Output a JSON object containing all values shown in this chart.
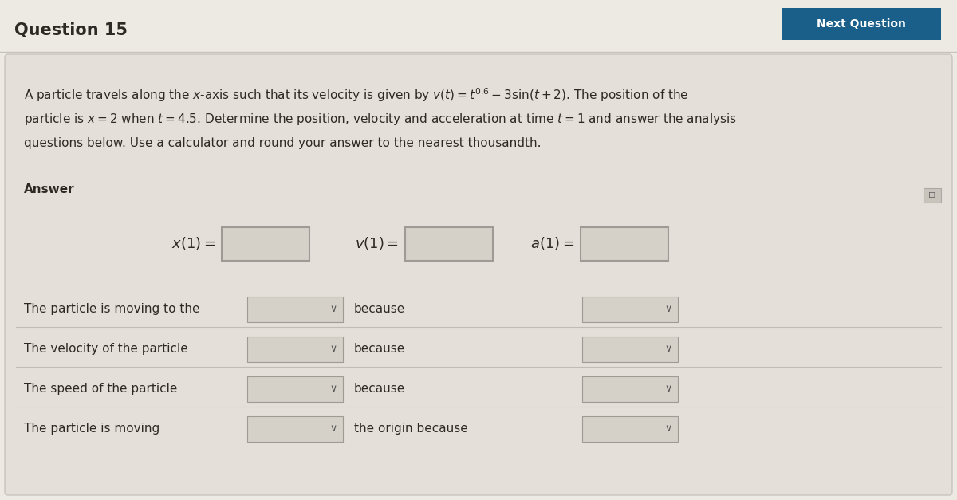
{
  "title": "Question 15",
  "button_text": "Next Question",
  "button_color": "#1a5f8a",
  "bg_color": "#ede9e3",
  "card_color": "#e4e0d9",
  "problem_line1": "A particle travels along the $x$-axis such that its velocity is given by $v(t) = t^{0.6} - 3\\sin(t + 2)$. The position of the",
  "problem_line2": "particle is $x = 2$ when $t = 4.5$. Determine the position, velocity and acceleration at time $t = 1$ and answer the analysis",
  "problem_line3": "questions below. Use a calculator and round your answer to the nearest thousandth.",
  "answer_label": "Answer",
  "text_color": "#2d2a26",
  "box_fill": "#d5d0c8",
  "box_edge": "#9e9b95",
  "divider_color": "#c0bdb7",
  "rows": [
    {
      "left": "The particle is moving to the",
      "mid": "because"
    },
    {
      "left": "The velocity of the particle",
      "mid": "because"
    },
    {
      "left": "The speed of the particle",
      "mid": "because"
    },
    {
      "left": "The particle is moving",
      "mid": "the origin because"
    }
  ]
}
